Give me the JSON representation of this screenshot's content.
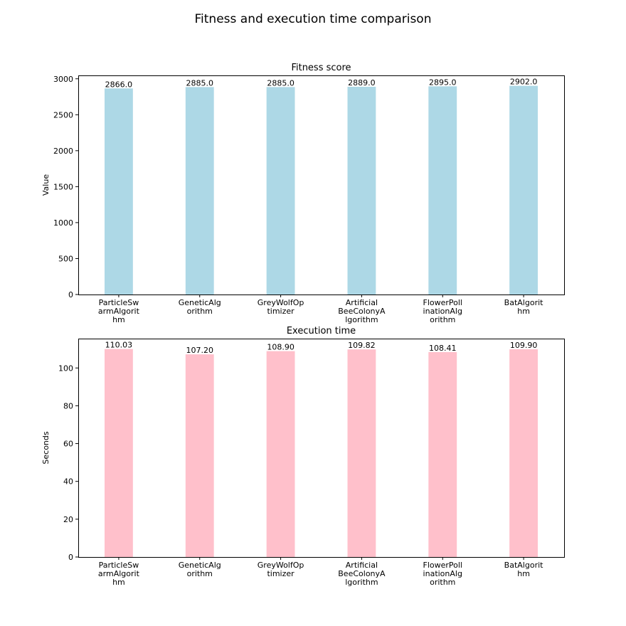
{
  "figure": {
    "title": "Fitness and execution time comparison"
  },
  "chart_data": [
    {
      "type": "bar",
      "title": "Fitness score",
      "xlabel": "",
      "ylabel": "Value",
      "categories": [
        [
          "ParticleSw",
          "armAlgorit",
          "hm"
        ],
        [
          "GeneticAlg",
          "orithm"
        ],
        [
          "GreyWolfOp",
          "timizer"
        ],
        [
          "Artificial",
          "BeeColonyA",
          "lgorithm"
        ],
        [
          "FlowerPoll",
          "inationAlg",
          "orithm"
        ],
        [
          "BatAlgorit",
          "hm"
        ]
      ],
      "values": [
        2866.0,
        2885.0,
        2885.0,
        2889.0,
        2895.0,
        2902.0
      ],
      "value_labels": [
        "2866.0",
        "2885.0",
        "2885.0",
        "2889.0",
        "2895.0",
        "2902.0"
      ],
      "ylim": [
        0,
        3047
      ],
      "yticks": [
        0,
        500,
        1000,
        1500,
        2000,
        2500,
        3000
      ],
      "color": "#add8e6",
      "grid": false
    },
    {
      "type": "bar",
      "title": "Execution time",
      "xlabel": "",
      "ylabel": "Seconds",
      "categories": [
        [
          "ParticleSw",
          "armAlgorit",
          "hm"
        ],
        [
          "GeneticAlg",
          "orithm"
        ],
        [
          "GreyWolfOp",
          "timizer"
        ],
        [
          "Artificial",
          "BeeColonyA",
          "lgorithm"
        ],
        [
          "FlowerPoll",
          "inationAlg",
          "orithm"
        ],
        [
          "BatAlgorit",
          "hm"
        ]
      ],
      "values": [
        110.03,
        107.2,
        108.9,
        109.82,
        108.41,
        109.9
      ],
      "value_labels": [
        "110.03",
        "107.20",
        "108.90",
        "109.82",
        "108.41",
        "109.90"
      ],
      "ylim": [
        0,
        115.53
      ],
      "yticks": [
        0,
        20,
        40,
        60,
        80,
        100
      ],
      "color": "#ffc0cb",
      "grid": false
    }
  ]
}
